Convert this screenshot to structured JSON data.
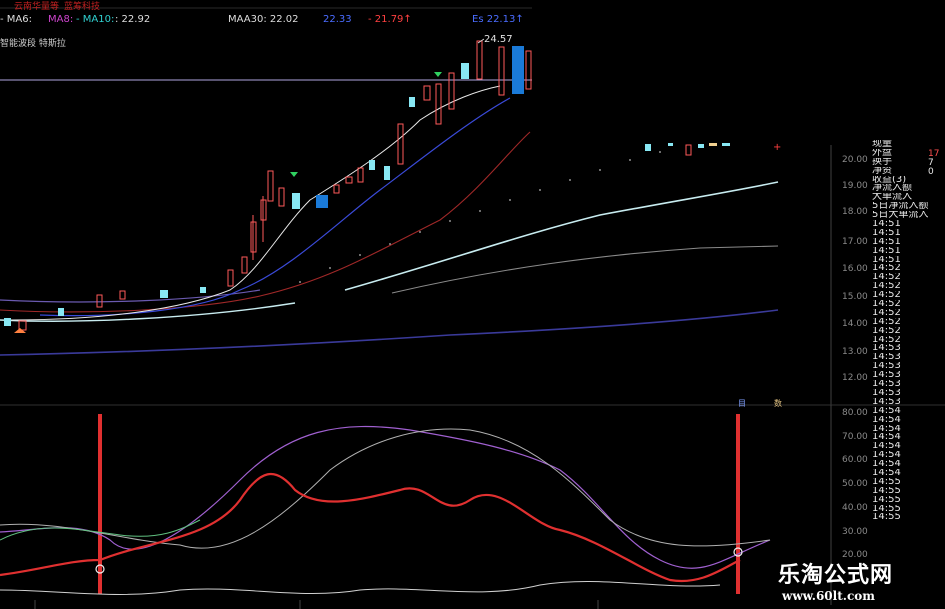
{
  "header": {
    "top_left_a": "云南华量等",
    "top_left_b": "蓝筹科技",
    "ma_items": [
      {
        "label": "- MA6:",
        "color": "#dddddd"
      },
      {
        "label": "MA8:",
        "color": "#cc44cc"
      },
      {
        "label": "- MA10:",
        "color": "#30d0d0"
      },
      {
        "label": ": 22.92",
        "color": "#dddddd"
      },
      {
        "label": "MAA30: 22.02",
        "color": "#dddddd"
      },
      {
        "label": "22.33",
        "color": "#4a6cff"
      },
      {
        "label": "- 21.79↑",
        "color": "#ff4040"
      },
      {
        "label": "Es 22.13↑",
        "color": "#4a6cff"
      }
    ],
    "sub_label": "智能波段 特斯拉"
  },
  "price_axis": {
    "ticks": [
      "20.00",
      "19.00",
      "18.00",
      "17.00",
      "16.00",
      "15.00",
      "14.00",
      "13.00",
      "12.00"
    ]
  },
  "annotation": {
    "peak_label": "24.57"
  },
  "osc_axis": {
    "ticks": [
      "80.00",
      "70.00",
      "60.00",
      "50.00",
      "40.00",
      "30.00",
      "20.00"
    ]
  },
  "side_panel": {
    "items": [
      "现量",
      "外盘",
      "换手",
      "净资",
      "收益(3)",
      "净流入额",
      "大单流入",
      "5日净流入额",
      "5日大单流入"
    ],
    "right_values": [
      "17",
      "7",
      "0"
    ],
    "times": [
      "14:51",
      "14:51",
      "14:51",
      "14:51",
      "14:51",
      "14:52",
      "14:52",
      "14:52",
      "14:52",
      "14:52",
      "14:52",
      "14:52",
      "14:52",
      "14:52",
      "14:53",
      "14:53",
      "14:53",
      "14:53",
      "14:53",
      "14:53",
      "14:53",
      "14:54",
      "14:54",
      "14:54",
      "14:54",
      "14:54",
      "14:54",
      "14:54",
      "14:54",
      "14:55",
      "14:55",
      "14:55",
      "14:55",
      "14:55"
    ]
  },
  "tags": {
    "left": "目",
    "right": "数"
  },
  "watermark": {
    "title": "乐淘公式网",
    "url": "www.60lt.com"
  }
}
